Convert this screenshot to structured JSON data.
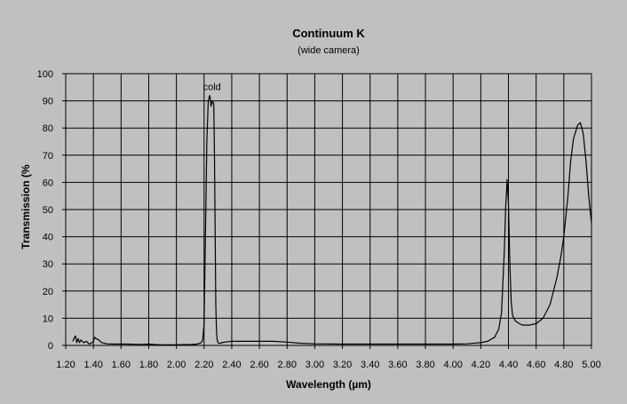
{
  "chart_data": {
    "type": "line",
    "title": "Continuum K",
    "subtitle": "(wide camera)",
    "xlabel": "Wavelength (µm)",
    "ylabel": "Transmission (%",
    "xlim": [
      1.2,
      5.0
    ],
    "ylim": [
      0,
      100
    ],
    "xticks": [
      "1.20",
      "1.40",
      "1.60",
      "1.80",
      "2.00",
      "2.20",
      "2.40",
      "2.60",
      "2.80",
      "3.00",
      "3.20",
      "3.40",
      "3.60",
      "3.80",
      "4.00",
      "4.20",
      "4.40",
      "4.60",
      "4.80",
      "5.00"
    ],
    "yticks": [
      "0",
      "10",
      "20",
      "30",
      "40",
      "50",
      "60",
      "70",
      "80",
      "90",
      "100"
    ],
    "grid": true,
    "background": "#c0c0c0",
    "line_color": "#000000",
    "annotations": [
      {
        "text": "cold",
        "x": 2.27,
        "y": 95
      }
    ],
    "series": [
      {
        "x": [
          1.25,
          1.27,
          1.28,
          1.29,
          1.3,
          1.31,
          1.33,
          1.35,
          1.37,
          1.39,
          1.4,
          1.41,
          1.42,
          1.44,
          1.46,
          1.48,
          1.5,
          1.55,
          1.6,
          1.65,
          1.7,
          1.75,
          1.8,
          1.85,
          1.9,
          1.95,
          2.0,
          2.05,
          2.1,
          2.15,
          2.18,
          2.19,
          2.2,
          2.21,
          2.22,
          2.23,
          2.24,
          2.245,
          2.25,
          2.26,
          2.27,
          2.275,
          2.28,
          2.285,
          2.29,
          2.295,
          2.3,
          2.31,
          2.32,
          2.33,
          2.35,
          2.4,
          2.5,
          2.6,
          2.7,
          2.8,
          2.9,
          3.0,
          3.2,
          3.4,
          3.6,
          3.8,
          4.0,
          4.1,
          4.2,
          4.25,
          4.3,
          4.33,
          4.35,
          4.37,
          4.38,
          4.39,
          4.4,
          4.41,
          4.42,
          4.43,
          4.45,
          4.48,
          4.5,
          4.55,
          4.6,
          4.65,
          4.7,
          4.75,
          4.78,
          4.8,
          4.83,
          4.85,
          4.87,
          4.9,
          4.92,
          4.94,
          4.96,
          4.98,
          5.0
        ],
        "values": [
          1.5,
          3.5,
          1.0,
          2.5,
          1.0,
          2.0,
          1.0,
          1.5,
          0.5,
          1.0,
          1.5,
          3.0,
          2.5,
          2.0,
          1.0,
          0.8,
          0.6,
          0.5,
          0.5,
          0.5,
          0.4,
          0.4,
          0.5,
          0.3,
          0.2,
          0.2,
          0.2,
          0.3,
          0.3,
          0.5,
          1.0,
          2.0,
          8.0,
          40.0,
          75.0,
          90.0,
          92.0,
          91.0,
          88.0,
          90.0,
          89.0,
          70.0,
          40.0,
          15.0,
          5.0,
          2.0,
          1.0,
          0.8,
          0.8,
          1.0,
          1.2,
          1.5,
          1.5,
          1.5,
          1.5,
          1.2,
          0.8,
          0.6,
          0.5,
          0.5,
          0.5,
          0.5,
          0.5,
          0.6,
          1.0,
          1.5,
          3.0,
          6.0,
          12.0,
          35.0,
          51.0,
          61.0,
          52.0,
          30.0,
          16.0,
          11.0,
          9.0,
          8.0,
          7.5,
          7.5,
          8.0,
          10.0,
          15.0,
          25.0,
          33.0,
          40.0,
          55.0,
          68.0,
          76.0,
          81.0,
          82.0,
          78.0,
          68.0,
          55.0,
          45.0
        ]
      }
    ]
  }
}
